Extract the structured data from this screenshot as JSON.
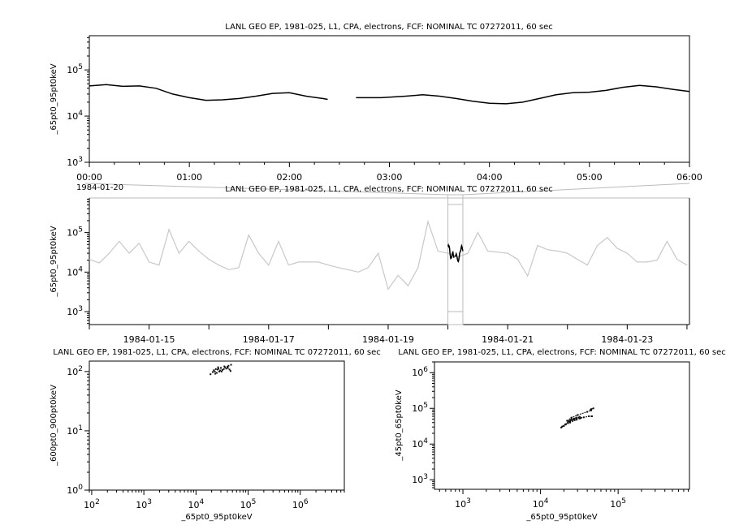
{
  "colors": {
    "foreground": "#000000",
    "context_series": "#c8c8c8",
    "zoom_box": "#bbbbbb",
    "background": "#ffffff"
  },
  "chart_data": [
    {
      "type": "line",
      "title": "LANL GEO EP, 1981-025, L1, CPA, electrons, FCF: NOMINAL TC 07272011, 60 sec",
      "ylabel": "_65pt0_95pt0keV",
      "xlabel": "",
      "date_label": "1984-01-20",
      "y_scale": "log",
      "ylim": [
        1000,
        550000
      ],
      "y_ticks": [
        1000,
        10000,
        100000
      ],
      "xlim": [
        "00:00",
        "06:00"
      ],
      "x_tick_labels": [
        "00:00",
        "01:00",
        "02:00",
        "03:00",
        "04:00",
        "05:00",
        "06:00"
      ],
      "grid": false,
      "series": [
        {
          "x": [
            "00:00",
            "00:10",
            "00:20",
            "00:30",
            "00:40",
            "00:50",
            "01:00",
            "01:10",
            "01:20",
            "01:30",
            "01:40",
            "01:50",
            "02:00",
            "02:10",
            "02:20",
            "02:23",
            "02:25",
            "02:40",
            "02:55",
            "03:10",
            "03:20",
            "03:30",
            "03:40",
            "03:50",
            "04:00",
            "04:10",
            "04:20",
            "04:30",
            "04:40",
            "04:50",
            "05:00",
            "05:10",
            "05:20",
            "05:30",
            "05:40",
            "05:50",
            "06:00"
          ],
          "y": [
            45000,
            48000,
            44000,
            45000,
            40000,
            30000,
            25000,
            22000,
            22500,
            24000,
            27000,
            31000,
            32000,
            27000,
            24000,
            23000,
            null,
            25000,
            25000,
            27000,
            29000,
            27000,
            24000,
            21000,
            19000,
            18500,
            20000,
            24000,
            29000,
            32000,
            33000,
            36000,
            42000,
            46000,
            43000,
            38000,
            34000
          ]
        }
      ]
    },
    {
      "type": "line",
      "title": "LANL GEO EP, 1981-025, L1, CPA, electrons, FCF: NOMINAL TC 07272011, 60 sec",
      "ylabel": "_65pt0_95pt0keV",
      "xlabel": "",
      "y_scale": "log",
      "ylim": [
        470,
        750000
      ],
      "y_ticks": [
        1000,
        10000,
        100000
      ],
      "xlim": [
        "1984-01-14T00:00",
        "1984-01-24T01:00"
      ],
      "x_tick_labels": [
        "1984-01-15",
        "1984-01-17",
        "1984-01-19",
        "1984-01-21",
        "1984-01-23"
      ],
      "highlight_range": [
        "1984-01-20T00:00",
        "1984-01-20T06:00"
      ],
      "grid": false,
      "series": [
        {
          "x_start": "1984-01-14T00:00",
          "x_step_hours": 4,
          "y": [
            21000,
            17000,
            30000,
            60000,
            30000,
            54000,
            18000,
            15000,
            120000,
            30000,
            60000,
            34000,
            21000,
            15000,
            11500,
            13000,
            87000,
            30000,
            15000,
            60000,
            15000,
            18000,
            18000,
            18000,
            15000,
            13000,
            11500,
            10000,
            13000,
            30000,
            3700,
            8300,
            4500,
            13000,
            190000,
            34000,
            30000,
            24000,
            30000,
            100000,
            34000,
            32000,
            30000,
            21000,
            8000,
            47000,
            37000,
            34000,
            30000,
            21000,
            15000,
            47000,
            75000,
            40000,
            30000,
            18000,
            18000,
            20000,
            60000,
            21000,
            15000
          ]
        }
      ]
    },
    {
      "type": "scatter",
      "title": "LANL GEO EP, 1981-025, L1, CPA, electrons, FCF: NOMINAL TC 07272011, 60 sec",
      "xlabel": "_65pt0_95pt0keV",
      "ylabel": "_600pt0_900pt0keV",
      "x_scale": "log",
      "y_scale": "log",
      "xlim": [
        90,
        7000000
      ],
      "ylim": [
        1,
        150
      ],
      "x_ticks": [
        100,
        1000,
        10000,
        100000,
        1000000
      ],
      "y_ticks": [
        1,
        10,
        100
      ],
      "grid": false,
      "x": [
        19000,
        21000,
        22000,
        23000,
        24000,
        25000,
        26000,
        27000,
        28000,
        29000,
        30000,
        32000,
        34000,
        36000,
        38000,
        40000,
        42000,
        44000,
        46000,
        47000,
        23500,
        26500,
        31000,
        35000,
        41000
      ],
      "y": [
        90,
        98,
        105,
        100,
        110,
        95,
        108,
        112,
        100,
        104,
        115,
        106,
        110,
        118,
        112,
        120,
        125,
        108,
        102,
        130,
        92,
        118,
        100,
        122,
        115
      ]
    },
    {
      "type": "line",
      "title": "LANL GEO EP, 1981-025, L1, CPA, electrons, FCF: NOMINAL TC 07272011, 60 sec",
      "xlabel": "_65pt0_95pt0keV",
      "ylabel": "_45pt0_65pt0keV",
      "x_scale": "log",
      "y_scale": "log",
      "xlim": [
        430,
        830000
      ],
      "ylim": [
        540,
        2000000
      ],
      "x_ticks": [
        1000,
        10000,
        100000
      ],
      "y_ticks": [
        1000,
        10000,
        100000,
        1000000
      ],
      "grid": false,
      "x": [
        45000,
        48000,
        44000,
        45000,
        40000,
        30000,
        25000,
        22000,
        22500,
        24000,
        27000,
        31000,
        32000,
        27000,
        24000,
        23000,
        25000,
        25000,
        27000,
        29000,
        27000,
        24000,
        21000,
        19000,
        18500,
        20000,
        24000,
        29000,
        32000,
        33000,
        36000,
        42000,
        46000
      ],
      "y": [
        95000,
        100000,
        90000,
        88000,
        80000,
        65000,
        55000,
        45000,
        40000,
        42000,
        48000,
        55000,
        58000,
        50000,
        45000,
        44000,
        50000,
        48000,
        52000,
        55000,
        50000,
        44000,
        36000,
        31000,
        29000,
        32000,
        40000,
        48000,
        52000,
        54000,
        56000,
        60000,
        60000
      ]
    }
  ]
}
